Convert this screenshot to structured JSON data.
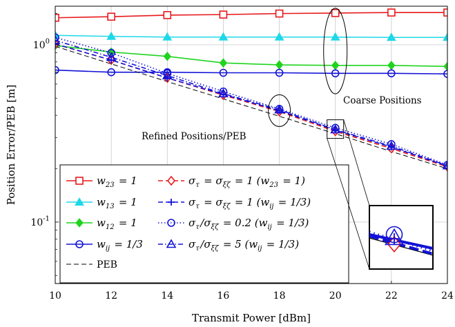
{
  "chart_data": {
    "type": "line",
    "xlabel": "Transmit Power [dBm]",
    "ylabel": "Position Error/PEB [m]",
    "x": [
      10,
      12,
      14,
      16,
      18,
      20,
      22,
      24
    ],
    "xlim": [
      10,
      24
    ],
    "ylim": [
      0.045,
      1.65
    ],
    "yscale": "log",
    "xticks": [
      "10",
      "12",
      "14",
      "16",
      "18",
      "20",
      "22",
      "24"
    ],
    "yticks": [
      {
        "value": 1,
        "label": "10^0"
      },
      {
        "value": 0.1,
        "label": "10^-1"
      }
    ],
    "grid": true,
    "legend_position": "bottom-left",
    "series": [
      {
        "name": "w23 = 1",
        "color": "#e8191c",
        "marker": "square",
        "dash": "solid",
        "values": [
          1.42,
          1.44,
          1.47,
          1.48,
          1.5,
          1.51,
          1.52,
          1.52
        ]
      },
      {
        "name": "w13 = 1",
        "color": "#1ed8e8",
        "marker": "triangle",
        "dash": "solid",
        "values": [
          1.13,
          1.115,
          1.105,
          1.105,
          1.105,
          1.105,
          1.1,
          1.1
        ]
      },
      {
        "name": "w12 = 1",
        "color": "#1fd31f",
        "marker": "diamond",
        "dash": "solid",
        "values": [
          0.99,
          0.91,
          0.86,
          0.79,
          0.77,
          0.765,
          0.765,
          0.755
        ]
      },
      {
        "name": "wij = 1/3",
        "color": "#1212d8",
        "marker": "circle",
        "dash": "solid",
        "values": [
          0.72,
          0.7,
          0.7,
          0.695,
          0.695,
          0.69,
          0.69,
          0.685
        ]
      },
      {
        "name": "PEB",
        "color": "#000000",
        "marker": "none",
        "dash": "dashed",
        "values": [
          0.98,
          0.78,
          0.62,
          0.495,
          0.395,
          0.315,
          0.25,
          0.2
        ]
      },
      {
        "name": "στ = σξζ = 1 (w23 = 1)",
        "color": "#e8191c",
        "marker": "diamond-open",
        "dash": "dashed",
        "values": [
          1.01,
          0.82,
          0.65,
          0.52,
          0.42,
          0.325,
          0.26,
          0.205
        ]
      },
      {
        "name": "στ = σξζ = 1 (wij = 1/3)",
        "color": "#1212d8",
        "marker": "plus",
        "dash": "dashed",
        "values": [
          1.01,
          0.82,
          0.65,
          0.525,
          0.425,
          0.33,
          0.265,
          0.207
        ]
      },
      {
        "name": "στ/σξζ = 0.2 (wij = 1/3)",
        "color": "#1212d8",
        "marker": "circle",
        "dash": "dotted",
        "values": [
          1.1,
          0.9,
          0.69,
          0.545,
          0.435,
          0.34,
          0.275,
          0.21
        ]
      },
      {
        "name": "στ/σξζ = 5 (wij = 1/3)",
        "color": "#1212d8",
        "marker": "triangle-open",
        "dash": "dashdot",
        "values": [
          1.06,
          0.85,
          0.67,
          0.53,
          0.43,
          0.332,
          0.268,
          0.208
        ]
      }
    ],
    "annotations": [
      {
        "text": "Coarse Positions"
      },
      {
        "text": "Refined Positions/PEB"
      }
    ]
  }
}
